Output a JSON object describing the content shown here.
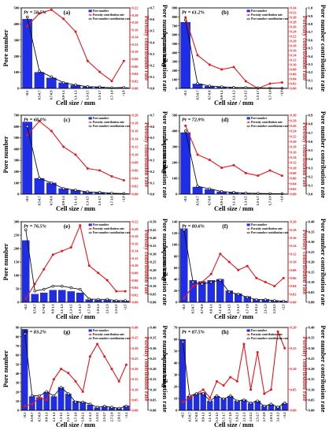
{
  "chart_data": [
    {
      "type": "bar",
      "panel_label": "(a)",
      "porosity_label": "Pr = 58.5%",
      "categories": [
        "<0.5",
        "0.5-0.7",
        "0.7-0.9",
        "0.9-1.1",
        "1.1-1.3",
        "1.3-1.5",
        "1.5-1.7",
        "1.7-1.9",
        ">1.9"
      ],
      "xlabel": "Cell size / mm",
      "ylabel": "Pore number",
      "y2label": "Pore number contribution rate",
      "ylim": [
        0,
        500
      ],
      "yticks": [
        0,
        100,
        200,
        300,
        400,
        500
      ],
      "y2lim": [
        0,
        0.22
      ],
      "y2ticks": [
        0.0,
        0.02,
        0.04,
        0.06,
        0.08,
        0.1,
        0.12,
        0.14,
        0.16,
        0.18,
        0.2,
        0.22
      ],
      "y3lim": [
        0,
        0.7
      ],
      "y3ticks": [
        0.0,
        0.1,
        0.2,
        0.3,
        0.4,
        0.5,
        0.6,
        0.7
      ],
      "series": [
        {
          "name": "Pore number",
          "axis": "left",
          "kind": "bar",
          "color": "#1f2ee6",
          "values": [
            430,
            100,
            65,
            35,
            20,
            10,
            8,
            3,
            5
          ]
        },
        {
          "name": "Porosity contribution rate",
          "axis": "right-inner",
          "kind": "line",
          "color": "#e8161b",
          "values": [
            0.17,
            0.205,
            0.215,
            0.19,
            0.155,
            0.075,
            0.045,
            0.02,
            0.075
          ]
        },
        {
          "name": "Pore number contribution rate",
          "axis": "right-outer",
          "kind": "line",
          "color": "#111111",
          "values": [
            0.62,
            0.15,
            0.1,
            0.05,
            0.03,
            0.015,
            0.012,
            0.005,
            0.008
          ]
        }
      ]
    },
    {
      "type": "bar",
      "panel_label": "(b)",
      "porosity_label": "Pr = 61.2%",
      "categories": [
        "<0.5",
        "0.5-0.7",
        "0.7-0.9",
        "0.9-1.1",
        "1.1-1.3",
        "1.3-1.5",
        "1.5-1.7",
        "1.7-1.9",
        ">1.9"
      ],
      "xlabel": "Cell size / mm",
      "ylabel": "Pore number",
      "y2label": "Pore number contribution rate",
      "ylim": [
        0,
        900
      ],
      "yticks": [
        0,
        100,
        200,
        300,
        400,
        500,
        600,
        700,
        800,
        900
      ],
      "y2lim": [
        0,
        0.34
      ],
      "y2ticks": [
        0.0,
        0.02,
        0.04,
        0.06,
        0.08,
        0.1,
        0.12,
        0.14,
        0.16,
        0.18,
        0.2,
        0.22,
        0.24,
        0.26,
        0.28,
        0.3,
        0.32,
        0.34
      ],
      "y3lim": [
        0,
        1.0
      ],
      "y3ticks": [
        0.0,
        0.1,
        0.2,
        0.3,
        0.4,
        0.5,
        0.6,
        0.7,
        0.8,
        0.9,
        1.0
      ],
      "series": [
        {
          "name": "Pore number",
          "axis": "left",
          "kind": "bar",
          "color": "#1f2ee6",
          "values": [
            740,
            50,
            25,
            15,
            10,
            8,
            5,
            3,
            2
          ]
        },
        {
          "name": "Porosity contribution rate",
          "axis": "right-inner",
          "kind": "line",
          "color": "#e8161b",
          "values": [
            0.3,
            0.14,
            0.1,
            0.08,
            0.09,
            0.03,
            0.0,
            0.02,
            0.025
          ]
        },
        {
          "name": "Pore number contribution rate",
          "axis": "right-outer",
          "kind": "line",
          "color": "#111111",
          "values": [
            0.85,
            0.06,
            0.03,
            0.02,
            0.012,
            0.01,
            0.006,
            0.004,
            0.003
          ]
        }
      ]
    },
    {
      "type": "bar",
      "panel_label": "(c)",
      "porosity_label": "Pr = 68.0%",
      "categories": [
        "<0.5",
        "0.5-0.7",
        "0.7-0.9",
        "0.9-1.1",
        "1.1-1.3",
        "1.3-1.5",
        "1.5-1.7",
        "1.7-1.9",
        ">1.9"
      ],
      "xlabel": "Cell size / mm",
      "ylabel": "Pore number",
      "y2label": "Pore number contribution rate",
      "ylim": [
        0,
        700
      ],
      "yticks": [
        0,
        100,
        200,
        300,
        400,
        500,
        600,
        700
      ],
      "y2lim": [
        0,
        0.2
      ],
      "y2ticks": [
        0.0,
        0.02,
        0.04,
        0.06,
        0.08,
        0.1,
        0.12,
        0.14,
        0.16,
        0.18,
        0.2
      ],
      "y3lim": [
        0,
        0.7
      ],
      "y3ticks": [
        0.0,
        0.1,
        0.2,
        0.3,
        0.4,
        0.5,
        0.6,
        0.7
      ],
      "series": [
        {
          "name": "Pore number",
          "axis": "left",
          "kind": "bar",
          "color": "#1f2ee6",
          "values": [
            640,
            140,
            100,
            50,
            35,
            20,
            15,
            8,
            5
          ]
        },
        {
          "name": "Porosity contribution rate",
          "axis": "right-inner",
          "kind": "line",
          "color": "#e8161b",
          "values": [
            0.15,
            0.185,
            0.16,
            0.12,
            0.1,
            0.065,
            0.06,
            0.045,
            0.035
          ]
        },
        {
          "name": "Pore number contribution rate",
          "axis": "right-outer",
          "kind": "line",
          "color": "#111111",
          "values": [
            0.6,
            0.14,
            0.1,
            0.05,
            0.035,
            0.02,
            0.015,
            0.008,
            0.005
          ]
        }
      ]
    },
    {
      "type": "bar",
      "panel_label": "(d)",
      "porosity_label": "Pr = 72.9%",
      "categories": [
        "<0.5",
        "0.5-0.7",
        "0.7-0.9",
        "0.9-1.1",
        "1.1-1.3",
        "1.3-1.5",
        "1.5-1.7",
        "1.7-1.9",
        ">1.9"
      ],
      "xlabel": "Cell size / mm",
      "ylabel": "Pore number",
      "y2label": "Pore number contribution rate",
      "ylim": [
        0,
        500
      ],
      "yticks": [
        0,
        100,
        200,
        300,
        400,
        500
      ],
      "y2lim": [
        0,
        0.3
      ],
      "y2ticks": [
        0.0,
        0.02,
        0.04,
        0.06,
        0.08,
        0.1,
        0.12,
        0.14,
        0.16,
        0.18,
        0.2,
        0.22,
        0.24,
        0.26,
        0.28,
        0.3
      ],
      "y3lim": [
        0,
        0.9
      ],
      "y3ticks": [
        0.0,
        0.1,
        0.2,
        0.3,
        0.4,
        0.5,
        0.6,
        0.7,
        0.8,
        0.9
      ],
      "series": [
        {
          "name": "Pore number",
          "axis": "left",
          "kind": "bar",
          "color": "#1f2ee6",
          "values": [
            390,
            45,
            30,
            15,
            10,
            6,
            4,
            3,
            2
          ]
        },
        {
          "name": "Porosity contribution rate",
          "axis": "right-inner",
          "kind": "line",
          "color": "#e8161b",
          "values": [
            0.26,
            0.15,
            0.13,
            0.1,
            0.11,
            0.08,
            0.07,
            0.09,
            0.07
          ]
        },
        {
          "name": "Pore number contribution rate",
          "axis": "right-outer",
          "kind": "line",
          "color": "#111111",
          "values": [
            0.72,
            0.09,
            0.06,
            0.03,
            0.02,
            0.012,
            0.008,
            0.006,
            0.004
          ]
        }
      ]
    },
    {
      "type": "bar",
      "panel_label": "(e)",
      "porosity_label": "Pr = 76.5%",
      "categories": [
        "<0.5",
        "0.5-0.7",
        "0.7-0.9",
        "0.9-1.1",
        "1.1-1.3",
        "1.3-1.5",
        "1.5-1.7",
        "1.7-1.9",
        "1.9-2.1",
        "2.1-2.3",
        "2.3-2.5",
        ">2.5"
      ],
      "xlabel": "Cell size / mm",
      "ylabel": "Pore number",
      "y2label": "Pore number contribution rate",
      "ylim": [
        0,
        300
      ],
      "yticks": [
        0,
        50,
        100,
        150,
        200,
        250,
        300
      ],
      "y2lim": [
        0,
        0.22
      ],
      "y2ticks": [
        0.0,
        0.02,
        0.04,
        0.06,
        0.08,
        0.1,
        0.12,
        0.14,
        0.16,
        0.18,
        0.2,
        0.22
      ],
      "y3lim": [
        0,
        0.5
      ],
      "y3ticks": [
        0.0,
        0.05,
        0.1,
        0.15,
        0.2,
        0.25,
        0.3,
        0.35,
        0.4,
        0.45,
        0.5
      ],
      "series": [
        {
          "name": "Pore number",
          "axis": "left",
          "kind": "bar",
          "color": "#1f2ee6",
          "values": [
            230,
            30,
            35,
            45,
            45,
            40,
            35,
            10,
            8,
            8,
            5,
            5
          ]
        },
        {
          "name": "Porosity contribution rate",
          "axis": "right-inner",
          "kind": "line",
          "color": "#e8161b",
          "values": [
            0.01,
            0.05,
            0.09,
            0.13,
            0.14,
            0.15,
            0.21,
            0.1,
            0.08,
            0.06,
            0.03,
            0.03
          ]
        },
        {
          "name": "Pore number contribution rate",
          "axis": "right-outer",
          "kind": "line",
          "color": "#111111",
          "values": [
            0.45,
            0.07,
            0.08,
            0.1,
            0.1,
            0.09,
            0.08,
            0.02,
            0.018,
            0.018,
            0.01,
            0.01
          ]
        }
      ]
    },
    {
      "type": "bar",
      "panel_label": "(f)",
      "porosity_label": "Pr = 80.6%",
      "categories": [
        "<0.5",
        "0.5-0.7",
        "0.7-0.9",
        "0.9-1.1",
        "1.1-1.3",
        "1.3-1.5",
        "1.5-1.7",
        "1.7-1.9",
        "1.9-2.1",
        "2.1-2.3",
        "2.3-2.5",
        ">2.5"
      ],
      "xlabel": "Cell size / mm",
      "ylabel": "Pore number",
      "y2label": "Pore number contribution rate",
      "ylim": [
        0,
        140
      ],
      "yticks": [
        0,
        20,
        40,
        60,
        80,
        100,
        120,
        140
      ],
      "y2lim": [
        0,
        0.2
      ],
      "y2ticks": [
        0.0,
        0.02,
        0.04,
        0.06,
        0.08,
        0.1,
        0.12,
        0.14,
        0.16,
        0.18,
        0.2
      ],
      "y3lim": [
        0,
        0.4
      ],
      "y3ticks": [
        0.0,
        0.05,
        0.1,
        0.15,
        0.2,
        0.25,
        0.3,
        0.35,
        0.4
      ],
      "series": [
        {
          "name": "Pore number",
          "axis": "left",
          "kind": "bar",
          "color": "#1f2ee6",
          "values": [
            128,
            38,
            36,
            38,
            40,
            20,
            15,
            10,
            5,
            5,
            3,
            2
          ]
        },
        {
          "name": "Porosity contribution rate",
          "axis": "right-inner",
          "kind": "line",
          "color": "#e8161b",
          "values": [
            0.01,
            0.04,
            0.05,
            0.07,
            0.12,
            0.1,
            0.08,
            0.09,
            0.06,
            0.05,
            0.04,
            0.06
          ]
        },
        {
          "name": "Pore number contribution rate",
          "axis": "right-outer",
          "kind": "line",
          "color": "#111111",
          "values": [
            0.36,
            0.1,
            0.09,
            0.1,
            0.11,
            0.05,
            0.04,
            0.025,
            0.013,
            0.013,
            0.008,
            0.005
          ]
        }
      ]
    },
    {
      "type": "bar",
      "panel_label": "(g)",
      "porosity_label": "Pr = 83.2%",
      "categories": [
        "<0.5",
        "0.5-0.7",
        "0.7-0.9",
        "0.9-1.1",
        "1.1-1.3",
        "1.3-1.5",
        "1.5-1.7",
        "1.7-1.9",
        "1.9-2.1",
        "2.1-2.3",
        "2.3-2.5",
        "2.5-2.7",
        "2.7-2.9",
        "2.9-3.1",
        ">3.1"
      ],
      "xlabel": "Cell size / mm",
      "ylabel": "Pore number",
      "y2label": "Pore number contribution rate",
      "ylim": [
        0,
        90
      ],
      "yticks": [
        0,
        10,
        20,
        30,
        40,
        50,
        60,
        70,
        80,
        90
      ],
      "y2lim": [
        0,
        0.4
      ],
      "y2ticks": [
        0.0,
        0.05,
        0.1,
        0.15,
        0.2,
        0.25,
        0.3,
        0.35,
        0.4
      ],
      "y3lim": [
        0,
        0.4
      ],
      "y3ticks": [
        0.0,
        0.05,
        0.1,
        0.15,
        0.2,
        0.25,
        0.3,
        0.35,
        0.4
      ],
      "series": [
        {
          "name": "Pore number",
          "axis": "left",
          "kind": "bar",
          "color": "#1f2ee6",
          "values": [
            88,
            15,
            14,
            20,
            15,
            25,
            18,
            10,
            9,
            6,
            3,
            4,
            3,
            2,
            5
          ]
        },
        {
          "name": "Porosity contribution rate",
          "axis": "right-inner",
          "kind": "line",
          "color": "#e8161b",
          "values": [
            0.02,
            0.03,
            0.06,
            0.05,
            0.15,
            0.2,
            0.18,
            0.14,
            0.09,
            0.26,
            0.32,
            0.26,
            0.2,
            0.14,
            0.22
          ]
        },
        {
          "name": "Pore number contribution rate",
          "axis": "right-outer",
          "kind": "line",
          "color": "#111111",
          "values": [
            0.37,
            0.07,
            0.07,
            0.09,
            0.07,
            0.11,
            0.08,
            0.04,
            0.04,
            0.03,
            0.015,
            0.02,
            0.015,
            0.01,
            0.02
          ]
        }
      ]
    },
    {
      "type": "bar",
      "panel_label": "(h)",
      "porosity_label": "Pr = 87.5%",
      "categories": [
        "<0.5",
        "0.5-0.7",
        "0.7-0.9",
        "0.9-1.1",
        "1.1-1.3",
        "1.3-1.5",
        "1.5-1.7",
        "1.7-1.9",
        "1.9-2.1",
        "2.1-2.3",
        "2.3-2.5",
        "2.5-2.7",
        "2.7-2.9",
        "2.9-3.1",
        "3.1-3.3",
        ">3.3"
      ],
      "xlabel": "Cell size / mm",
      "ylabel": "Pore number",
      "y2label": "Pore number contribution rate",
      "ylim": [
        0,
        70
      ],
      "yticks": [
        0,
        10,
        20,
        30,
        40,
        50,
        60,
        70
      ],
      "y2lim": [
        0,
        0.2
      ],
      "y2ticks": [
        0.0,
        0.05,
        0.1,
        0.15,
        0.2
      ],
      "y3lim": [
        0,
        0.4
      ],
      "y3ticks": [
        0.0,
        0.05,
        0.1,
        0.15,
        0.2,
        0.25,
        0.3,
        0.35,
        0.4
      ],
      "series": [
        {
          "name": "Pore number",
          "axis": "left",
          "kind": "bar",
          "color": "#1f2ee6",
          "values": [
            60,
            12,
            14,
            15,
            8,
            12,
            10,
            12,
            8,
            9,
            6,
            8,
            4,
            5,
            3,
            6
          ]
        },
        {
          "name": "Porosity contribution rate",
          "axis": "right-inner",
          "kind": "line",
          "color": "#e8161b",
          "values": [
            0.02,
            0.03,
            0.04,
            0.05,
            0.03,
            0.07,
            0.06,
            0.08,
            0.07,
            0.16,
            0.05,
            0.14,
            0.04,
            0.05,
            0.19,
            0.15
          ]
        },
        {
          "name": "Pore number contribution rate",
          "axis": "right-outer",
          "kind": "line",
          "color": "#111111",
          "values": [
            0.33,
            0.07,
            0.08,
            0.08,
            0.045,
            0.07,
            0.055,
            0.07,
            0.045,
            0.05,
            0.035,
            0.045,
            0.02,
            0.03,
            0.015,
            0.035
          ]
        }
      ]
    }
  ]
}
